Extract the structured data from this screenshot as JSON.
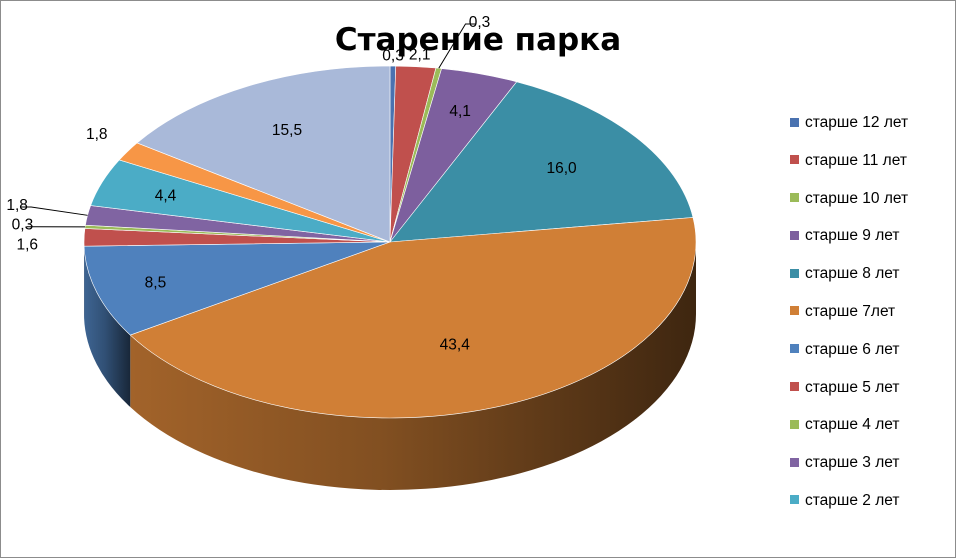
{
  "chart_data": {
    "type": "pie",
    "title": "Старение парка",
    "legend_position": "right",
    "categories": [
      "старше 12 лет",
      "старше 11 лет",
      "старше 10 лет",
      "старше 9 лет",
      "старше 8 лет",
      "старше 7лет",
      "старше 6 лет",
      "старше 5 лет",
      "старше 4 лет",
      "старше  3 лет",
      "старше 2 лет",
      "",
      ""
    ],
    "values": [
      0.3,
      2.1,
      0.3,
      4.1,
      16.0,
      43.4,
      8.5,
      1.6,
      0.3,
      1.8,
      4.4,
      1.8,
      15.5
    ],
    "value_labels": [
      "0,3",
      "2,1",
      "0,3",
      "4,1",
      "16,0",
      "43,4",
      "8,5",
      "1,6",
      "0,3",
      "1,8",
      "4,4",
      "1,8",
      "15,5"
    ],
    "colors": [
      "#4a72b0",
      "#c0504d",
      "#9bbb59",
      "#7d5f9e",
      "#3b8ea5",
      "#d07f36",
      "#4f81bd",
      "#c0504d",
      "#9bbb59",
      "#8064a2",
      "#4bacc6",
      "#f79646",
      "#a9b9d9"
    ]
  }
}
